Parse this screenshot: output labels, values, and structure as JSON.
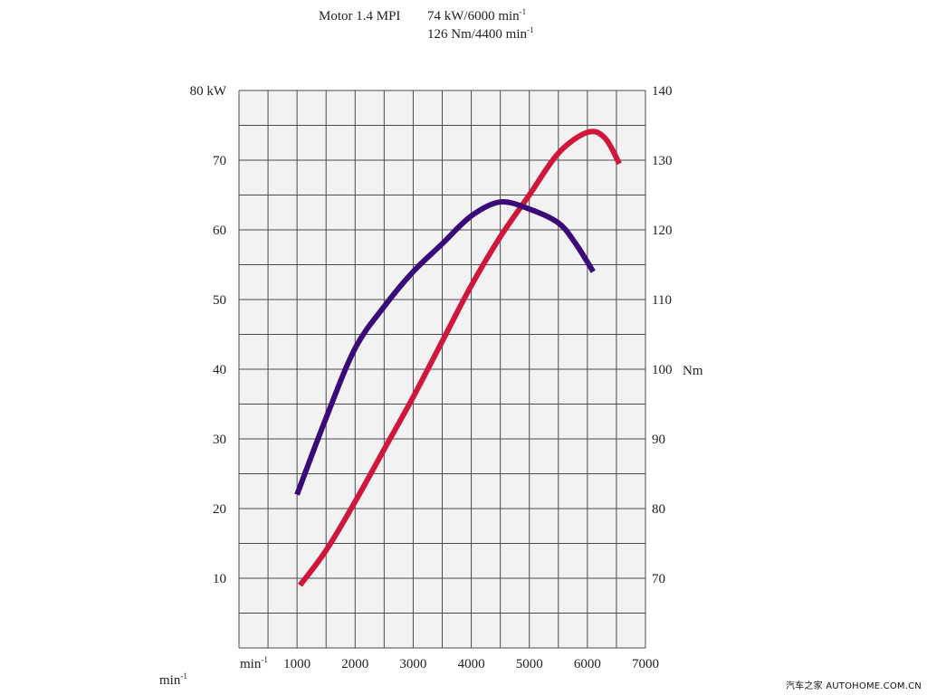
{
  "chart_data": {
    "type": "line",
    "title": {
      "engine": "Motor 1.4 MPI",
      "power_spec": "74 kW/6000 min",
      "torque_spec": "126 Nm/4400 min",
      "superscript": "-1"
    },
    "x_axis": {
      "unit_label": "min",
      "bottom_label": "min",
      "superscript": "-1",
      "range": [
        0,
        7000
      ],
      "ticks": [
        1000,
        2000,
        3000,
        4000,
        5000,
        6000,
        7000
      ],
      "tick_labels": [
        "1000",
        "2000",
        "3000",
        "4000",
        "5000",
        "6000",
        "7000"
      ]
    },
    "y_left": {
      "unit": "kW",
      "range": [
        0,
        80
      ],
      "ticks": [
        10,
        20,
        30,
        40,
        50,
        60,
        70,
        80
      ],
      "tick_labels": [
        "10",
        "20",
        "30",
        "40",
        "50",
        "60",
        "70",
        "80 kW"
      ]
    },
    "y_right": {
      "unit": "Nm",
      "range": [
        60,
        140
      ],
      "ticks": [
        70,
        80,
        90,
        100,
        110,
        120,
        130,
        140
      ],
      "tick_labels": [
        "70",
        "80",
        "90",
        "100",
        "110",
        "120",
        "130",
        "140"
      ],
      "unit_label": "Nm"
    },
    "grid": true,
    "series": [
      {
        "axis": "left",
        "color": "#d0163a",
        "points": [
          [
            1050,
            9
          ],
          [
            1500,
            14
          ],
          [
            2000,
            21
          ],
          [
            2500,
            28.5
          ],
          [
            3000,
            36
          ],
          [
            3500,
            44
          ],
          [
            4000,
            52
          ],
          [
            4500,
            59
          ],
          [
            5000,
            65
          ],
          [
            5500,
            71
          ],
          [
            6000,
            74
          ],
          [
            6300,
            73.2
          ],
          [
            6550,
            69.5
          ]
        ]
      },
      {
        "axis": "right",
        "color": "#3a0a78",
        "points": [
          [
            1000,
            82
          ],
          [
            1500,
            93
          ],
          [
            2000,
            103
          ],
          [
            2500,
            109
          ],
          [
            3000,
            114
          ],
          [
            3500,
            118
          ],
          [
            4000,
            122
          ],
          [
            4500,
            124
          ],
          [
            5000,
            123
          ],
          [
            5500,
            121
          ],
          [
            5800,
            118
          ],
          [
            6100,
            114
          ]
        ]
      }
    ],
    "watermark": "汽车之家 AUTOHOME.COM.CN"
  }
}
